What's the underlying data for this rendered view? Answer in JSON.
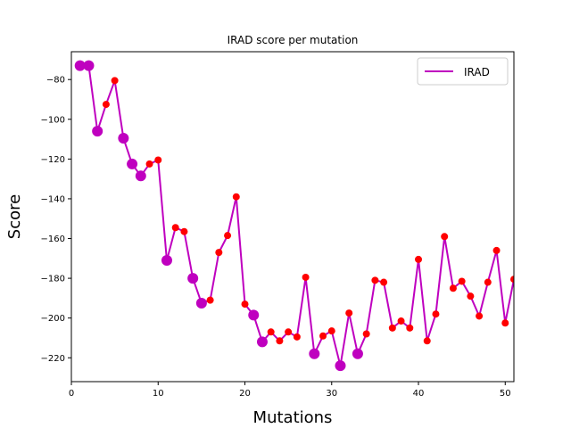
{
  "chart_data": {
    "type": "line",
    "title": "IRAD score per mutation",
    "xlabel": "Mutations",
    "ylabel": "Score",
    "xlim": [
      0,
      51
    ],
    "ylim": [
      -232,
      -66
    ],
    "x_ticks": [
      0,
      10,
      20,
      30,
      40,
      50
    ],
    "x_tick_labels": [
      "0",
      "10",
      "20",
      "30",
      "40",
      "50"
    ],
    "y_ticks": [
      -80,
      -100,
      -120,
      -140,
      -160,
      -180,
      -200,
      -220
    ],
    "y_tick_labels": [
      "−80",
      "−100",
      "−120",
      "−140",
      "−160",
      "−180",
      "−200",
      "−220"
    ],
    "grid": false,
    "legend": {
      "placement": "top-right",
      "entries": [
        {
          "label": "IRAD",
          "color": "#bf00bf"
        }
      ]
    },
    "series": [
      {
        "name": "IRAD",
        "color": "#bf00bf",
        "x": [
          1,
          2,
          3,
          4,
          5,
          6,
          7,
          8,
          9,
          10,
          11,
          12,
          13,
          14,
          15,
          16,
          17,
          18,
          19,
          20,
          21,
          22,
          23,
          24,
          25,
          26,
          27,
          28,
          29,
          30,
          31,
          32,
          33,
          34,
          35,
          36,
          37,
          38,
          39,
          40,
          41,
          42,
          43,
          44,
          45,
          46,
          47,
          48,
          49,
          50,
          51
        ],
        "y": [
          -73,
          -73,
          -106,
          -92.5,
          -80.5,
          -109.5,
          -122.5,
          -128.5,
          -122.5,
          -120.5,
          -171,
          -154.5,
          -156.5,
          -180,
          -192.5,
          -191,
          -167,
          -158.5,
          -139,
          -193,
          -198.5,
          -212,
          -207,
          -211.5,
          -207,
          -209.5,
          -179.5,
          -218,
          -209,
          -206.5,
          -224,
          -197.5,
          -218,
          -208,
          -181,
          -182,
          -205,
          -201.5,
          -205,
          -170.5,
          -211.5,
          -198,
          -159,
          -185,
          -181.5,
          -189,
          -199,
          -182,
          -166,
          -202.5,
          -180.5
        ]
      }
    ],
    "accepted_points": [
      1,
      2,
      3,
      6,
      7,
      8,
      11,
      14,
      15,
      21,
      22,
      28,
      31,
      33
    ],
    "marker_colors": {
      "accepted": "#bf00bf",
      "rejected": "#ff0000"
    }
  }
}
